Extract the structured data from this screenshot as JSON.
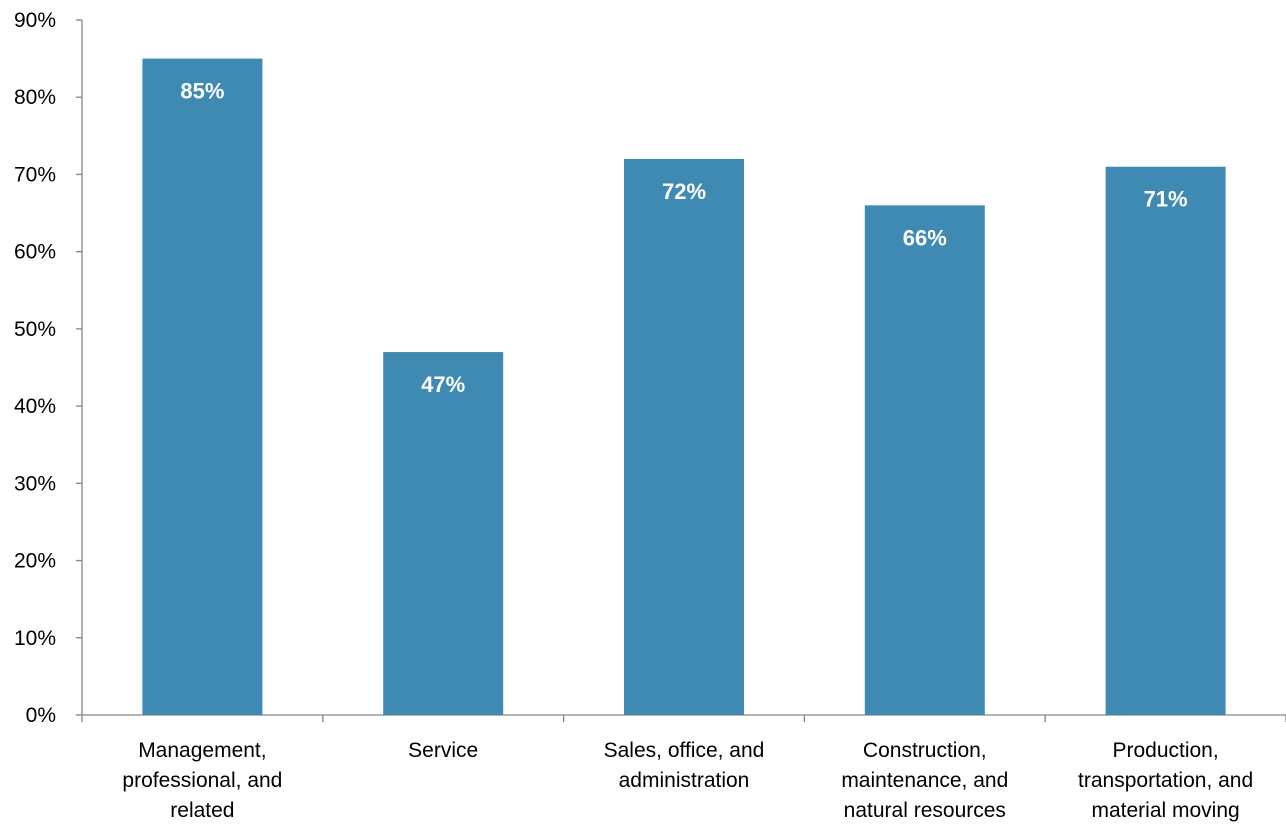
{
  "chart_data": {
    "type": "bar",
    "title": "",
    "xlabel": "",
    "ylabel": "",
    "categories": [
      [
        "Management,",
        "professional, and",
        "related"
      ],
      [
        "Service"
      ],
      [
        "Sales, office, and",
        "administration"
      ],
      [
        "Construction,",
        "maintenance, and",
        "natural resources"
      ],
      [
        "Production,",
        "transportation, and",
        "material moving"
      ]
    ],
    "values": [
      85,
      47,
      72,
      66,
      71
    ],
    "data_labels": [
      "85%",
      "47%",
      "72%",
      "66%",
      "71%"
    ],
    "ylim": [
      0,
      90
    ],
    "y_ticks": [
      0,
      10,
      20,
      30,
      40,
      50,
      60,
      70,
      80,
      90
    ],
    "y_tick_labels": [
      "0%",
      "10%",
      "20%",
      "30%",
      "40%",
      "50%",
      "60%",
      "70%",
      "80%",
      "90%"
    ],
    "grid": false,
    "legend": "none",
    "bar_color": "#3F8AB2",
    "axis_color": "#868686"
  }
}
